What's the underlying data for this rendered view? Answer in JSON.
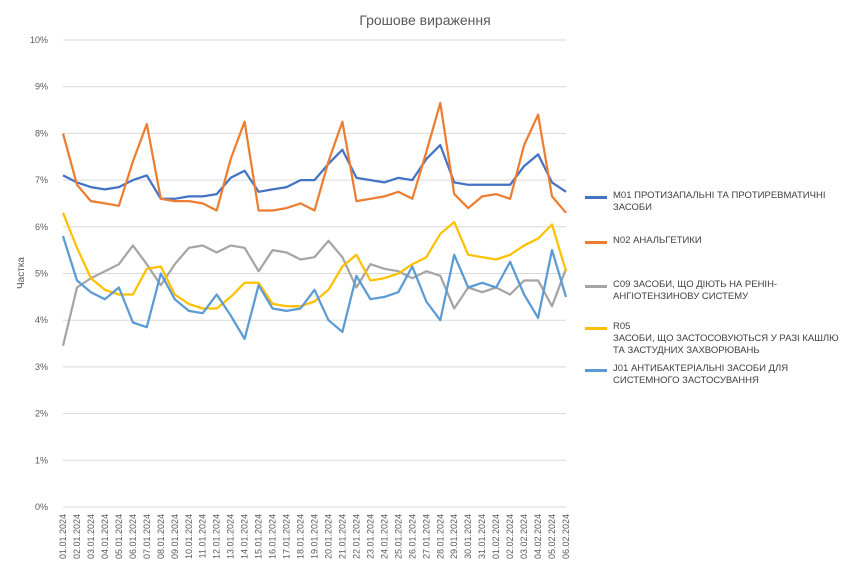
{
  "chart_data": {
    "type": "line",
    "title": "Грошове вираження",
    "xlabel": "",
    "ylabel": "Частка",
    "ylim": [
      0,
      10
    ],
    "yticks": [
      "0%",
      "1%",
      "2%",
      "3%",
      "4%",
      "5%",
      "6%",
      "7%",
      "8%",
      "9%",
      "10%"
    ],
    "grid": true,
    "legend": "right",
    "categories": [
      "01.01.2024",
      "02.01.2024",
      "03.01.2024",
      "04.01.2024",
      "05.01.2024",
      "06.01.2024",
      "07.01.2024",
      "08.01.2024",
      "09.01.2024",
      "10.01.2024",
      "11.01.2024",
      "12.01.2024",
      "13.01.2024",
      "14.01.2024",
      "15.01.2024",
      "16.01.2024",
      "17.01.2024",
      "18.01.2024",
      "19.01.2024",
      "20.01.2024",
      "21.01.2024",
      "22.01.2024",
      "23.01.2024",
      "24.01.2024",
      "25.01.2024",
      "26.01.2024",
      "27.01.2024",
      "28.01.2024",
      "29.01.2024",
      "30.01.2024",
      "31.01.2024",
      "01.02.2024",
      "02.02.2024",
      "03.02.2024",
      "04.02.2024",
      "05.02.2024",
      "06.02.2024"
    ],
    "series": [
      {
        "name": "M01 ПРОТИЗАПАЛЬНІ ТА ПРОТИРЕВМАТИЧНІ ЗАСОБИ",
        "color": "#4472C4",
        "values": [
          7.1,
          6.95,
          6.85,
          6.8,
          6.85,
          7.0,
          7.1,
          6.6,
          6.6,
          6.65,
          6.65,
          6.7,
          7.05,
          7.2,
          6.75,
          6.8,
          6.85,
          7.0,
          7.0,
          7.35,
          7.65,
          7.05,
          7.0,
          6.95,
          7.05,
          7.0,
          7.45,
          7.75,
          6.95,
          6.9,
          6.9,
          6.9,
          6.9,
          7.3,
          7.55,
          6.95,
          6.75
        ]
      },
      {
        "name": "N02 АНАЛЬГЕТИКИ",
        "color": "#ED7D31",
        "values": [
          8.0,
          6.9,
          6.55,
          6.5,
          6.45,
          7.4,
          8.2,
          6.6,
          6.55,
          6.55,
          6.5,
          6.35,
          7.45,
          8.25,
          6.35,
          6.35,
          6.4,
          6.5,
          6.35,
          7.4,
          8.25,
          6.55,
          6.6,
          6.65,
          6.75,
          6.6,
          7.6,
          8.65,
          6.7,
          6.4,
          6.65,
          6.7,
          6.6,
          7.75,
          8.4,
          6.65,
          6.3
        ]
      },
      {
        "name": "C09 ЗАСОБИ, ЩО ДІЮТЬ НА РЕНІН-АНГІОТЕНЗИНОВУ СИСТЕМУ",
        "color": "#A5A5A5",
        "values": [
          3.45,
          4.7,
          4.9,
          5.05,
          5.2,
          5.6,
          5.2,
          4.75,
          5.2,
          5.55,
          5.6,
          5.45,
          5.6,
          5.55,
          5.05,
          5.5,
          5.45,
          5.3,
          5.35,
          5.7,
          5.35,
          4.7,
          5.2,
          5.1,
          5.05,
          4.9,
          5.05,
          4.95,
          4.25,
          4.7,
          4.6,
          4.7,
          4.55,
          4.85,
          4.85,
          4.3,
          5.1
        ]
      },
      {
        "name": "R05\nЗАСОБИ, ЩО ЗАСТОСОВУЮТЬСЯ У РАЗІ КАШЛЮ ТА ЗАСТУДНИХ ЗАХВОРЮВАНЬ",
        "color": "#FFC000",
        "values": [
          6.3,
          5.55,
          4.9,
          4.65,
          4.55,
          4.55,
          5.1,
          5.15,
          4.55,
          4.35,
          4.25,
          4.25,
          4.5,
          4.8,
          4.8,
          4.35,
          4.3,
          4.3,
          4.4,
          4.65,
          5.15,
          5.4,
          4.85,
          4.9,
          5.0,
          5.2,
          5.35,
          5.85,
          6.1,
          5.4,
          5.35,
          5.3,
          5.4,
          5.6,
          5.75,
          6.05,
          5.05
        ]
      },
      {
        "name": "J01 АНТИБАКТЕРІАЛЬНІ ЗАСОБИ ДЛЯ СИСТЕМНОГО ЗАСТОСУВАННЯ",
        "color": "#5B9BD5",
        "values": [
          5.8,
          4.85,
          4.6,
          4.45,
          4.7,
          3.95,
          3.85,
          5.0,
          4.45,
          4.2,
          4.15,
          4.55,
          4.1,
          3.6,
          4.75,
          4.25,
          4.2,
          4.25,
          4.65,
          4.0,
          3.75,
          4.95,
          4.45,
          4.5,
          4.6,
          5.15,
          4.4,
          4.0,
          5.4,
          4.7,
          4.8,
          4.7,
          5.25,
          4.55,
          4.05,
          5.5,
          4.5
        ]
      }
    ]
  }
}
